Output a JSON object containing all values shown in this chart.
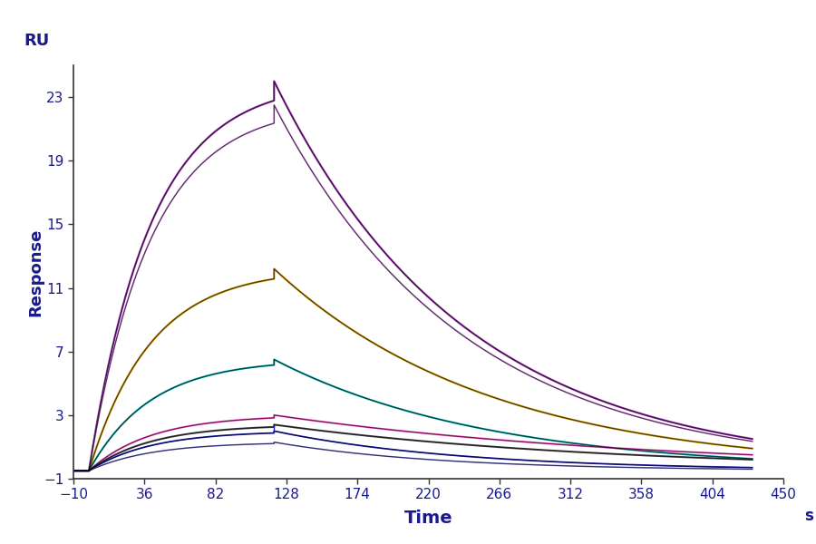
{
  "title": "RU",
  "xlabel": "Time",
  "ylabel": "Response",
  "xlabel_unit": "s",
  "xlim": [
    -10,
    450
  ],
  "ylim": [
    -1,
    25
  ],
  "xticks": [
    -10,
    36,
    82,
    128,
    174,
    220,
    266,
    312,
    358,
    404,
    450
  ],
  "yticks": [
    -1,
    3,
    7,
    11,
    15,
    19,
    23
  ],
  "background_color": "#ffffff",
  "label_color": "#1a1a8c",
  "axis_color": "#333333",
  "injection_start": 0,
  "injection_end": 120,
  "dissociation_end": 430,
  "t_start": -10,
  "baseline": -0.5,
  "series": [
    {
      "color": "#9b30b0",
      "peak": 24.0,
      "end_val": 1.5,
      "ka": 0.045,
      "kd": 0.0055,
      "lw": 1.6
    },
    {
      "color": "#cc88dd",
      "peak": 22.5,
      "end_val": 1.35,
      "ka": 0.043,
      "kd": 0.0055,
      "lw": 1.3
    },
    {
      "color": "#c8960a",
      "peak": 12.2,
      "end_val": 0.9,
      "ka": 0.04,
      "kd": 0.006,
      "lw": 1.6
    },
    {
      "color": "#00aaaa",
      "peak": 6.5,
      "end_val": 0.25,
      "ka": 0.038,
      "kd": 0.007,
      "lw": 1.5
    },
    {
      "color": "#ff55cc",
      "peak": 3.0,
      "end_val": 0.5,
      "ka": 0.035,
      "kd": 0.0072,
      "lw": 1.5
    },
    {
      "color": "#505050",
      "peak": 2.4,
      "end_val": 0.2,
      "ka": 0.033,
      "kd": 0.0075,
      "lw": 1.5
    },
    {
      "color": "#2222cc",
      "peak": 2.0,
      "end_val": -0.3,
      "ka": 0.03,
      "kd": 0.008,
      "lw": 1.3
    },
    {
      "color": "#8888ee",
      "peak": 1.3,
      "end_val": -0.4,
      "ka": 0.025,
      "kd": 0.0085,
      "lw": 1.2
    }
  ]
}
